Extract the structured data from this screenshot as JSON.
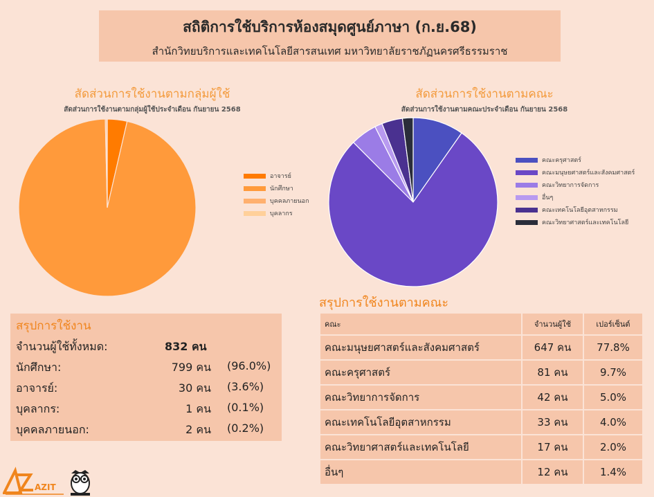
{
  "header": {
    "title": "สถิติการใช้บริการห้องสมุดศูนย์ภาษา  (ก.ย.68)",
    "subtitle": "สำนักวิทยบริการและเทคโนโลยีสารสนเทศ มหาวิทยาลัยราชภัฏนครศรีธรรมราช"
  },
  "chart_data": [
    {
      "type": "pie",
      "title": "สัดส่วนการใช้งานตามกลุ่มผู้ใช้",
      "subtitle": "สัดส่วนการใช้งานตามกลุ่มผู้ใช้ประจำเดือน กันยายน 2568",
      "legend_position": "right",
      "categories": [
        "อาจารย์",
        "นักศึกษา",
        "บุคคลภายนอก",
        "บุคลากร"
      ],
      "values": [
        30,
        799,
        2,
        1
      ],
      "colors": [
        "#ff7b00",
        "#ff9a3b",
        "#ffb06e",
        "#ffd09a"
      ]
    },
    {
      "type": "pie",
      "title": "สัดส่วนการใช้งานตามคณะ",
      "subtitle": "สัดส่วนการใช้งานตามคณะประจำเดือน กันยายน 2568",
      "legend_position": "right",
      "categories": [
        "คณะครุศาสตร์",
        "คณะมนุษยศาสตร์และสังคมศาสตร์",
        "คณะวิทยาการจัดการ",
        "อื่นๆ",
        "คณะเทคโนโลยีอุตสาหกรรม",
        "คณะวิทยาศาสตร์และเทคโนโลยี"
      ],
      "values": [
        81,
        647,
        42,
        12,
        33,
        17
      ],
      "colors": [
        "#4b50c0",
        "#6a48c6",
        "#9b7ce6",
        "#b89af0",
        "#4a3190",
        "#2a2d3a"
      ]
    }
  ],
  "summary": {
    "title": "สรุปการใช้งาน",
    "rows": [
      {
        "label": "จำนวนผู้ใช้ทั้งหมด:",
        "value": "832 คน",
        "pct": ""
      },
      {
        "label": "นักศึกษา:",
        "value": "799 คน",
        "pct": "(96.0%)"
      },
      {
        "label": "อาจารย์:",
        "value": "30 คน",
        "pct": "(3.6%)"
      },
      {
        "label": "บุคลากร:",
        "value": "1 คน",
        "pct": "(0.1%)"
      },
      {
        "label": "บุคคลภายนอก:",
        "value": "2 คน",
        "pct": "(0.2%)"
      }
    ]
  },
  "faculty_table": {
    "title": "สรุปการใช้งานตามคณะ",
    "headers": [
      "คณะ",
      "จำนวนผู้ใช้",
      "เปอร์เซ็นต์"
    ],
    "rows": [
      [
        "คณะมนุษยศาสตร์และสังคมศาสตร์",
        "647 คน",
        "77.8%"
      ],
      [
        "คณะครุศาสตร์",
        "81 คน",
        "9.7%"
      ],
      [
        "คณะวิทยาการจัดการ",
        "42 คน",
        "5.0%"
      ],
      [
        "คณะเทคโนโลยีอุตสาหกรรม",
        "33 คน",
        "4.0%"
      ],
      [
        "คณะวิทยาศาสตร์และเทคโนโลยี",
        "17 คน",
        "2.0%"
      ],
      [
        "อื่นๆ",
        "12 คน",
        "1.4%"
      ]
    ]
  },
  "logo": {
    "text": "AZIT",
    "icons": [
      "azit-logo-icon",
      "owl-icon"
    ]
  }
}
